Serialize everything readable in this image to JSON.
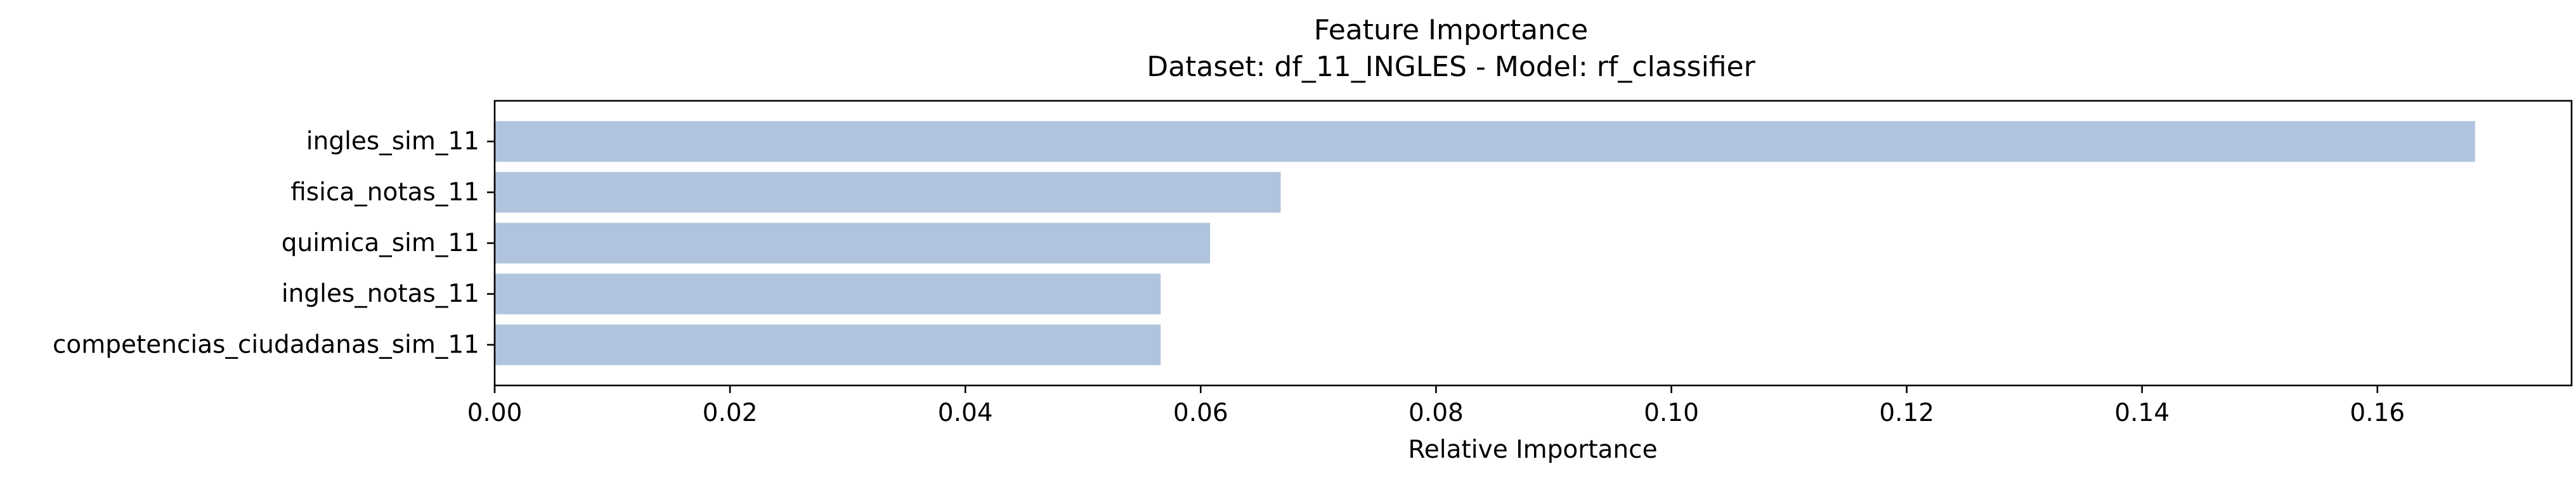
{
  "chart_data": {
    "type": "bar",
    "orientation": "horizontal",
    "title": "Feature Importance",
    "subtitle": "Dataset: df_11_INGLES  -  Model: rf_classifier",
    "xlabel": "Relative Importance",
    "ylabel": "",
    "xlim": [
      0,
      0.1765
    ],
    "x_ticks": [
      0.0,
      0.02,
      0.04,
      0.06,
      0.08,
      0.1,
      0.12,
      0.14,
      0.16
    ],
    "x_tick_labels": [
      "0.00",
      "0.02",
      "0.04",
      "0.06",
      "0.08",
      "0.10",
      "0.12",
      "0.14",
      "0.16"
    ],
    "categories": [
      "ingles_sim_11",
      "fisica_notas_11",
      "quimica_sim_11",
      "ingles_notas_11",
      "competencias_ciudadanas_sim_11"
    ],
    "values": [
      0.1683,
      0.0668,
      0.0608,
      0.0566,
      0.0566
    ],
    "bar_color": "#b0c4de",
    "grid": false,
    "legend": "none"
  }
}
